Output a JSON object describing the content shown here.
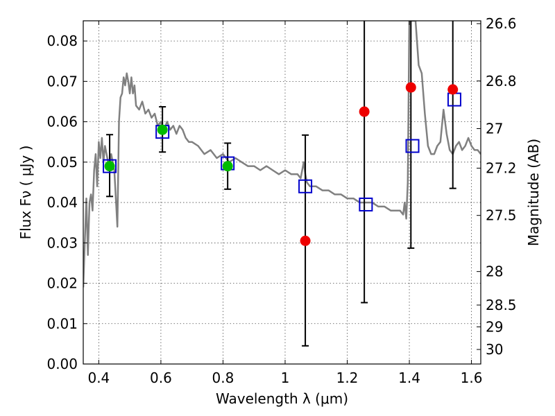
{
  "chart_data": {
    "type": "scatter",
    "xlabel": "Wavelength  λ (μm)",
    "ylabel": "Flux  Fν  ( μJy )",
    "ylabel_right": "Magnitude (AB)",
    "xlim": [
      0.35,
      1.63
    ],
    "ylim": [
      0.0,
      0.085
    ],
    "grid": true,
    "x_ticks": [
      0.4,
      0.6,
      0.8,
      1.0,
      1.2,
      1.4,
      1.6
    ],
    "x_tick_labels": [
      "0.4",
      "0.6",
      "0.8",
      "1",
      "1.2",
      "1.4",
      "1.6"
    ],
    "y_ticks": [
      0.0,
      0.01,
      0.02,
      0.03,
      0.04,
      0.05,
      0.06,
      0.07,
      0.08
    ],
    "y_tick_labels": [
      "0.00",
      "0.01",
      "0.02",
      "0.03",
      "0.04",
      "0.05",
      "0.06",
      "0.07",
      "0.08"
    ],
    "right_ticks": [
      {
        "label": "26.6",
        "flux": 0.0843
      },
      {
        "label": "26.8",
        "flux": 0.0701
      },
      {
        "label": "27",
        "flux": 0.0583
      },
      {
        "label": "27.2",
        "flux": 0.0485
      },
      {
        "label": "27.5",
        "flux": 0.0368
      },
      {
        "label": "28",
        "flux": 0.0229
      },
      {
        "label": "28.5",
        "flux": 0.0146
      },
      {
        "label": "29",
        "flux": 0.0092
      },
      {
        "label": "30",
        "flux": 0.0036
      }
    ],
    "series": [
      {
        "marker": "line",
        "color": "#808080",
        "x": [
          0.35,
          0.355,
          0.36,
          0.365,
          0.37,
          0.375,
          0.38,
          0.385,
          0.39,
          0.395,
          0.4,
          0.405,
          0.41,
          0.415,
          0.42,
          0.425,
          0.43,
          0.435,
          0.44,
          0.445,
          0.45,
          0.455,
          0.46,
          0.465,
          0.47,
          0.475,
          0.48,
          0.485,
          0.49,
          0.495,
          0.5,
          0.505,
          0.51,
          0.515,
          0.52,
          0.53,
          0.54,
          0.55,
          0.56,
          0.57,
          0.58,
          0.59,
          0.6,
          0.61,
          0.62,
          0.63,
          0.64,
          0.65,
          0.66,
          0.67,
          0.68,
          0.69,
          0.7,
          0.72,
          0.74,
          0.76,
          0.78,
          0.8,
          0.82,
          0.84,
          0.86,
          0.88,
          0.9,
          0.92,
          0.94,
          0.96,
          0.98,
          1.0,
          1.02,
          1.04,
          1.05,
          1.06,
          1.065,
          1.07,
          1.08,
          1.1,
          1.12,
          1.14,
          1.16,
          1.18,
          1.2,
          1.22,
          1.24,
          1.26,
          1.28,
          1.3,
          1.32,
          1.34,
          1.36,
          1.37,
          1.38,
          1.385,
          1.39,
          1.395,
          1.4,
          1.41,
          1.42,
          1.43,
          1.44,
          1.45,
          1.46,
          1.47,
          1.48,
          1.49,
          1.5,
          1.51,
          1.52,
          1.53,
          1.54,
          1.55,
          1.56,
          1.57,
          1.58,
          1.59,
          1.6,
          1.61,
          1.62,
          1.63
        ],
        "y": [
          0.019,
          0.03,
          0.041,
          0.027,
          0.04,
          0.042,
          0.038,
          0.048,
          0.052,
          0.044,
          0.055,
          0.051,
          0.056,
          0.05,
          0.054,
          0.052,
          0.05,
          0.049,
          0.052,
          0.05,
          0.048,
          0.041,
          0.034,
          0.06,
          0.066,
          0.067,
          0.071,
          0.069,
          0.072,
          0.07,
          0.067,
          0.071,
          0.067,
          0.069,
          0.064,
          0.063,
          0.065,
          0.062,
          0.063,
          0.061,
          0.062,
          0.059,
          0.06,
          0.058,
          0.06,
          0.058,
          0.059,
          0.057,
          0.059,
          0.058,
          0.056,
          0.055,
          0.055,
          0.054,
          0.052,
          0.053,
          0.051,
          0.052,
          0.05,
          0.051,
          0.05,
          0.049,
          0.049,
          0.048,
          0.049,
          0.048,
          0.047,
          0.048,
          0.047,
          0.047,
          0.046,
          0.05,
          0.047,
          0.045,
          0.044,
          0.044,
          0.043,
          0.043,
          0.042,
          0.042,
          0.041,
          0.041,
          0.04,
          0.04,
          0.04,
          0.039,
          0.039,
          0.038,
          0.038,
          0.038,
          0.037,
          0.04,
          0.036,
          0.045,
          0.085,
          0.085,
          0.085,
          0.074,
          0.072,
          0.062,
          0.054,
          0.052,
          0.052,
          0.054,
          0.055,
          0.063,
          0.057,
          0.053,
          0.052,
          0.054,
          0.055,
          0.053,
          0.054,
          0.056,
          0.054,
          0.053,
          0.053,
          0.052
        ]
      },
      {
        "marker": "open-square",
        "color": "#0000cc",
        "x": [
          0.435,
          0.605,
          0.815,
          1.065,
          1.26,
          1.41,
          1.545
        ],
        "y": [
          0.049,
          0.0575,
          0.0497,
          0.044,
          0.0395,
          0.054,
          0.0655
        ]
      },
      {
        "marker": "filled-circle",
        "color": "#00bb00",
        "x": [
          0.435,
          0.605,
          0.815
        ],
        "y": [
          0.049,
          0.058,
          0.049
        ]
      },
      {
        "marker": "filled-circle",
        "color": "#ee0000",
        "x": [
          1.065,
          1.255,
          1.405,
          1.54
        ],
        "y": [
          0.0305,
          0.0625,
          0.0685,
          0.068
        ]
      }
    ],
    "error_bars": [
      {
        "x": 0.435,
        "low": 0.0415,
        "high": 0.0568
      },
      {
        "x": 0.605,
        "low": 0.0525,
        "high": 0.0637
      },
      {
        "x": 0.815,
        "low": 0.0433,
        "high": 0.0547
      },
      {
        "x": 1.065,
        "low": 0.0045,
        "high": 0.0567
      },
      {
        "x": 1.255,
        "low": 0.0152,
        "high": 0.085
      },
      {
        "x": 1.405,
        "low": 0.0287,
        "high": 0.085
      },
      {
        "x": 1.54,
        "low": 0.0435,
        "high": 0.085
      }
    ]
  }
}
